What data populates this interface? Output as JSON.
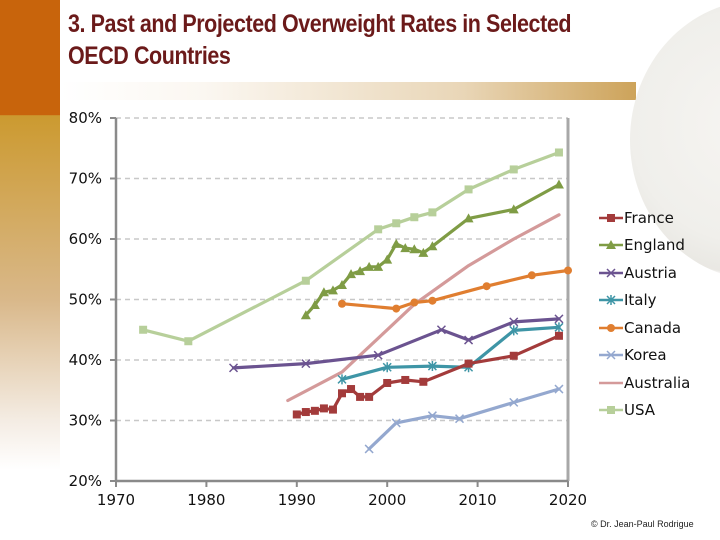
{
  "slide": {
    "title": "3. Past and Projected Overweight Rates in Selected OECD Countries",
    "copyright": "© Dr. Jean-Paul Rodrigue"
  },
  "chart_data": {
    "type": "line",
    "title": "3. Past and Projected Overweight Rates in Selected OECD Countries",
    "xlabel": "",
    "ylabel": "",
    "xlim": [
      1970,
      2020
    ],
    "ylim": [
      20,
      80
    ],
    "x_ticks": [
      "1970",
      "1980",
      "1990",
      "2000",
      "2010",
      "2020"
    ],
    "y_ticks": [
      "20%",
      "30%",
      "40%",
      "50%",
      "60%",
      "70%",
      "80%"
    ],
    "grid": "horizontal-dashed",
    "legend_position": "right",
    "series": [
      {
        "name": "France",
        "color": "#a33b3b",
        "marker": "square",
        "points": [
          [
            1990,
            31.0
          ],
          [
            1991,
            31.4
          ],
          [
            1992,
            31.6
          ],
          [
            1993,
            32.0
          ],
          [
            1994,
            31.8
          ],
          [
            1995,
            34.5
          ],
          [
            1996,
            35.2
          ],
          [
            1997,
            33.9
          ],
          [
            1998,
            33.9
          ],
          [
            2000,
            36.2
          ],
          [
            2002,
            36.7
          ],
          [
            2004,
            36.4
          ],
          [
            2009,
            39.4
          ],
          [
            2014,
            40.7
          ],
          [
            2019,
            44.0
          ]
        ]
      },
      {
        "name": "England",
        "color": "#7f9c45",
        "marker": "triangle",
        "points": [
          [
            1991,
            47.4
          ],
          [
            1992,
            49.1
          ],
          [
            1993,
            51.2
          ],
          [
            1994,
            51.5
          ],
          [
            1995,
            52.4
          ],
          [
            1996,
            54.2
          ],
          [
            1997,
            54.7
          ],
          [
            1998,
            55.4
          ],
          [
            1999,
            55.4
          ],
          [
            2000,
            56.6
          ],
          [
            2001,
            59.2
          ],
          [
            2002,
            58.5
          ],
          [
            2003,
            58.3
          ],
          [
            2004,
            57.7
          ],
          [
            2005,
            58.8
          ],
          [
            2009,
            63.4
          ],
          [
            2014,
            64.9
          ],
          [
            2019,
            69.0
          ]
        ]
      },
      {
        "name": "Austria",
        "color": "#6b5390",
        "marker": "x",
        "points": [
          [
            1983,
            38.7
          ],
          [
            1991,
            39.4
          ],
          [
            1999,
            40.8
          ],
          [
            2006,
            45.0
          ],
          [
            2009,
            43.3
          ],
          [
            2014,
            46.3
          ],
          [
            2019,
            46.8
          ]
        ]
      },
      {
        "name": "Italy",
        "color": "#3e95a6",
        "marker": "star",
        "points": [
          [
            1995,
            36.8
          ],
          [
            2000,
            38.8
          ],
          [
            2005,
            39.0
          ],
          [
            2009,
            38.8
          ],
          [
            2014,
            44.9
          ],
          [
            2019,
            45.4
          ]
        ]
      },
      {
        "name": "Canada",
        "color": "#e07e30",
        "marker": "circle",
        "points": [
          [
            1995,
            49.3
          ],
          [
            2001,
            48.5
          ],
          [
            2003,
            49.5
          ],
          [
            2005,
            49.8
          ],
          [
            2011,
            52.2
          ],
          [
            2016,
            54.0
          ],
          [
            2020,
            54.8
          ]
        ]
      },
      {
        "name": "Korea",
        "color": "#94a8cf",
        "marker": "x",
        "points": [
          [
            1998,
            25.3
          ],
          [
            2001,
            29.6
          ],
          [
            2005,
            30.8
          ],
          [
            2008,
            30.3
          ],
          [
            2014,
            33.0
          ],
          [
            2019,
            35.2
          ]
        ]
      },
      {
        "name": "Australia",
        "color": "#d49a9a",
        "marker": "none",
        "points": [
          [
            1989,
            33.3
          ],
          [
            1995,
            38.0
          ],
          [
            2000,
            45.0
          ],
          [
            2003,
            49.2
          ],
          [
            2009,
            55.6
          ],
          [
            2014,
            60.0
          ],
          [
            2019,
            64.0
          ]
        ]
      },
      {
        "name": "USA",
        "color": "#b7cf9a",
        "marker": "square",
        "points": [
          [
            1973,
            45.0
          ],
          [
            1978,
            43.1
          ],
          [
            1991,
            53.1
          ],
          [
            1999,
            61.6
          ],
          [
            2001,
            62.6
          ],
          [
            2003,
            63.6
          ],
          [
            2005,
            64.4
          ],
          [
            2009,
            68.2
          ],
          [
            2014,
            71.5
          ],
          [
            2019,
            74.3
          ]
        ]
      }
    ]
  }
}
